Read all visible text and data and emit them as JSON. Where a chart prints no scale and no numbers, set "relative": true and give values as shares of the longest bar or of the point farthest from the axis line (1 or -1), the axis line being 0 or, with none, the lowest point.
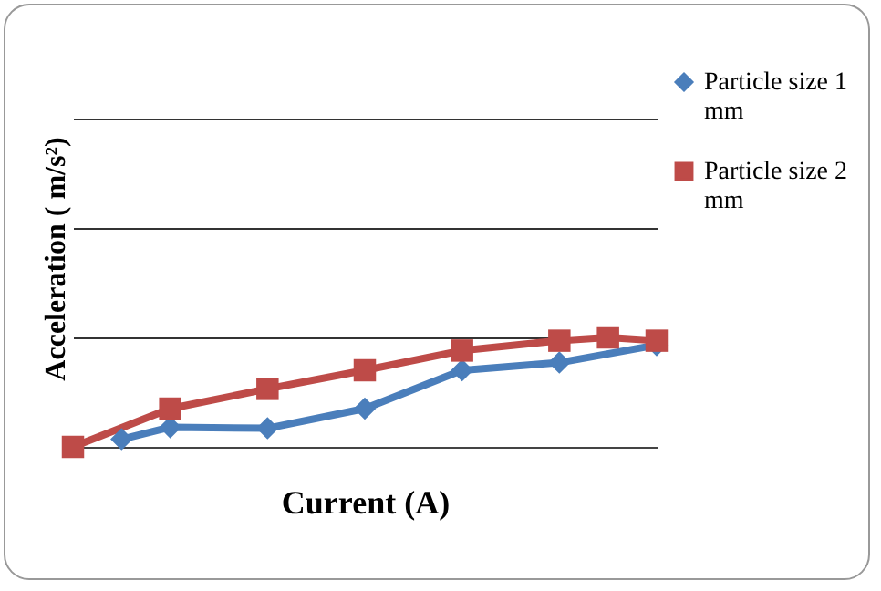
{
  "chart_data": {
    "type": "line",
    "relative": true,
    "xlabel": "Current (A)",
    "ylabel": "Acceleration ( m/s²)",
    "grid": "y",
    "legend": "right",
    "tick_labels": false,
    "categories": [
      null,
      null,
      null,
      null,
      null,
      null,
      null,
      null,
      null,
      null,
      null,
      null,
      null
    ],
    "series": [
      {
        "name": "Particle size 1 mm",
        "color": "#4a7ebb",
        "marker": "diamond",
        "values": [
          null,
          0.07,
          0.18,
          null,
          0.17,
          null,
          0.35,
          null,
          0.7,
          null,
          0.77,
          null,
          0.93
        ]
      },
      {
        "name": "Particle size 2 mm",
        "color": "#be4b48",
        "marker": "square",
        "values": [
          0,
          null,
          0.35,
          null,
          0.53,
          null,
          0.7,
          null,
          0.88,
          null,
          0.97,
          1.0,
          0.97
        ]
      }
    ]
  }
}
